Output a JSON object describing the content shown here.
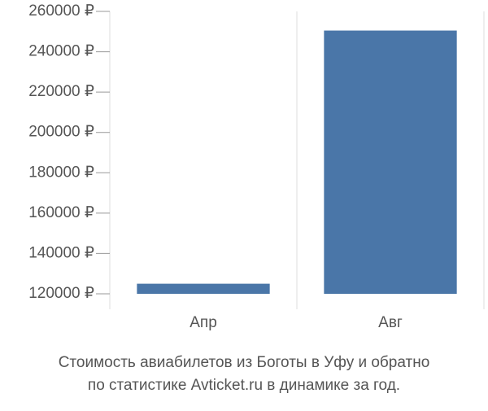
{
  "chart_data": {
    "type": "bar",
    "title": "Стоимость авиабилетов из Боготы в Уфу и обратно",
    "subtitle": "по статистике Avticket.ru в динамике за год.",
    "categories": [
      "Апр",
      "Авг"
    ],
    "values": [
      125000,
      250500
    ],
    "color": "#4a76a8",
    "ylim": [
      120000,
      260000
    ],
    "yticks": [
      {
        "value": 120000,
        "label": "120000 ₽"
      },
      {
        "value": 140000,
        "label": "140000 ₽"
      },
      {
        "value": 160000,
        "label": "160000 ₽"
      },
      {
        "value": 180000,
        "label": "180000 ₽"
      },
      {
        "value": 200000,
        "label": "200000 ₽"
      },
      {
        "value": 220000,
        "label": "220000 ₽"
      },
      {
        "value": 240000,
        "label": "240000 ₽"
      },
      {
        "value": 260000,
        "label": "260000 ₽"
      }
    ],
    "grid": true
  }
}
